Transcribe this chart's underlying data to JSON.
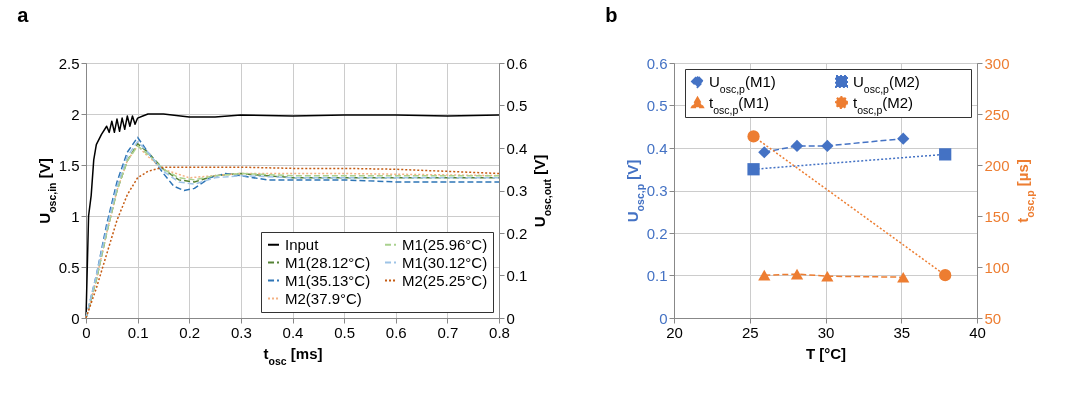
{
  "chart_data": [
    {
      "type": "line",
      "title": "a",
      "xlabel": "t$_{osc}$ [ms]",
      "ylabel": "U$_{osc,in}$ [V]",
      "y2label": "U$_{osc,out}$ [V]",
      "xlim": [
        0,
        0.8
      ],
      "xticks": [
        0,
        0.1,
        0.2,
        0.3,
        0.4,
        0.5,
        0.6,
        0.7,
        0.8
      ],
      "ylim": [
        0,
        2.5
      ],
      "yticks": [
        0,
        0.5,
        1,
        1.5,
        2,
        2.5
      ],
      "y2lim": [
        0,
        0.6
      ],
      "y2ticks": [
        0,
        0.1,
        0.2,
        0.3,
        0.4,
        0.5,
        0.6
      ],
      "grid": true,
      "legend": "bottom right",
      "series": [
        {
          "name": "Input",
          "color": "#000000",
          "line_style": "solid",
          "x": [
            0,
            0.005,
            0.01,
            0.015,
            0.02,
            0.03,
            0.04,
            0.045,
            0.05,
            0.055,
            0.06,
            0.065,
            0.07,
            0.075,
            0.08,
            0.085,
            0.09,
            0.095,
            0.1,
            0.11,
            0.12,
            0.15,
            0.2,
            0.25,
            0.3,
            0.4,
            0.5,
            0.6,
            0.7,
            0.8
          ],
          "values": [
            0,
            1.0,
            1.2,
            1.55,
            1.7,
            1.8,
            1.88,
            1.82,
            1.93,
            1.82,
            1.95,
            1.83,
            1.96,
            1.85,
            1.98,
            1.88,
            1.98,
            1.9,
            1.96,
            1.98,
            2.0,
            2.0,
            1.97,
            1.97,
            1.99,
            1.98,
            1.99,
            1.99,
            1.98,
            1.99
          ]
        },
        {
          "name": "M1(28.12°C)",
          "color": "#548235",
          "line_style": "dashed",
          "axis": "y2",
          "x": [
            0,
            0.02,
            0.04,
            0.06,
            0.08,
            0.1,
            0.12,
            0.15,
            0.18,
            0.21,
            0.25,
            0.3,
            0.4,
            0.5,
            0.6,
            0.7,
            0.8
          ],
          "values": [
            0,
            0.09,
            0.2,
            0.3,
            0.37,
            0.41,
            0.39,
            0.35,
            0.325,
            0.32,
            0.335,
            0.34,
            0.33,
            0.33,
            0.33,
            0.33,
            0.33
          ]
        },
        {
          "name": "M1(35.13°C)",
          "color": "#2e75b6",
          "line_style": "dashed",
          "axis": "y2",
          "x": [
            0,
            0.02,
            0.04,
            0.06,
            0.08,
            0.1,
            0.12,
            0.15,
            0.17,
            0.19,
            0.21,
            0.24,
            0.27,
            0.3,
            0.35,
            0.4,
            0.5,
            0.6,
            0.7,
            0.8
          ],
          "values": [
            0,
            0.1,
            0.22,
            0.32,
            0.39,
            0.425,
            0.39,
            0.34,
            0.31,
            0.3,
            0.305,
            0.33,
            0.34,
            0.335,
            0.325,
            0.325,
            0.325,
            0.32,
            0.32,
            0.32
          ]
        },
        {
          "name": "M2(37.9°C)",
          "color": "#f4b183",
          "line_style": "dotted",
          "axis": "y2",
          "x": [
            0,
            0.02,
            0.04,
            0.06,
            0.08,
            0.1,
            0.12,
            0.15,
            0.2,
            0.3,
            0.5,
            0.8
          ],
          "values": [
            0,
            0.09,
            0.2,
            0.3,
            0.37,
            0.405,
            0.38,
            0.35,
            0.33,
            0.34,
            0.34,
            0.335
          ]
        },
        {
          "name": "M1(25.96°C)",
          "color": "#a9d18e",
          "line_style": "dashed",
          "axis": "y2",
          "x": [
            0,
            0.02,
            0.04,
            0.06,
            0.08,
            0.1,
            0.12,
            0.15,
            0.18,
            0.21,
            0.25,
            0.3,
            0.4,
            0.5,
            0.6,
            0.7,
            0.8
          ],
          "values": [
            0,
            0.09,
            0.2,
            0.3,
            0.37,
            0.405,
            0.385,
            0.35,
            0.33,
            0.325,
            0.335,
            0.34,
            0.335,
            0.335,
            0.335,
            0.335,
            0.335
          ]
        },
        {
          "name": "M1(30.12°C)",
          "color": "#9dc3e6",
          "line_style": "dashed",
          "axis": "y2",
          "x": [
            0,
            0.02,
            0.04,
            0.06,
            0.08,
            0.1,
            0.12,
            0.15,
            0.18,
            0.21,
            0.25,
            0.3,
            0.4,
            0.5,
            0.6,
            0.7,
            0.8
          ],
          "values": [
            0,
            0.1,
            0.21,
            0.31,
            0.38,
            0.415,
            0.39,
            0.345,
            0.32,
            0.315,
            0.33,
            0.335,
            0.33,
            0.33,
            0.33,
            0.33,
            0.33
          ]
        },
        {
          "name": "M2(25.25°C)",
          "color": "#c55a11",
          "line_style": "dotted",
          "axis": "y2",
          "x": [
            0,
            0.02,
            0.04,
            0.06,
            0.08,
            0.1,
            0.12,
            0.15,
            0.2,
            0.3,
            0.4,
            0.5,
            0.6,
            0.7,
            0.8
          ],
          "values": [
            0,
            0.07,
            0.15,
            0.23,
            0.29,
            0.33,
            0.345,
            0.355,
            0.355,
            0.355,
            0.352,
            0.352,
            0.35,
            0.345,
            0.34
          ]
        }
      ]
    },
    {
      "type": "line",
      "title": "b",
      "xlabel": "T [°C]",
      "ylabel": "U$_{osc,p}$ [V]",
      "y2label": "t$_{osc,p}$ [µs]",
      "xlim": [
        20,
        40
      ],
      "xticks": [
        20,
        25,
        30,
        35,
        40
      ],
      "ylim": [
        0,
        0.6
      ],
      "yticks": [
        0,
        0.1,
        0.2,
        0.3,
        0.4,
        0.5,
        0.6
      ],
      "y2lim": [
        50,
        300
      ],
      "y2ticks": [
        50,
        100,
        150,
        200,
        250,
        300
      ],
      "grid": true,
      "legend": "top",
      "series": [
        {
          "name": "U$_{osc,p}$(M1)",
          "color": "#4472c4",
          "line_style": "dashed",
          "marker": "diamond",
          "x": [
            25.96,
            28.12,
            30.12,
            35.13
          ],
          "values": [
            0.39,
            0.405,
            0.405,
            0.422
          ]
        },
        {
          "name": "t$_{osc,p}$(M1)",
          "color": "#ed7d31",
          "line_style": "dashed",
          "marker": "triangle",
          "axis": "y2",
          "x": [
            25.96,
            28.12,
            30.12,
            35.13
          ],
          "values": [
            92,
            93,
            91,
            90
          ]
        },
        {
          "name": "U$_{osc,p}$(M2)",
          "color": "#4472c4",
          "line_style": "dotted",
          "marker": "square",
          "x": [
            25.25,
            37.9
          ],
          "values": [
            0.35,
            0.385
          ]
        },
        {
          "name": "t$_{osc,p}$(M2)",
          "color": "#ed7d31",
          "line_style": "dotted",
          "marker": "circle",
          "axis": "y2",
          "x": [
            25.25,
            37.9
          ],
          "values": [
            228,
            92
          ]
        }
      ]
    }
  ]
}
